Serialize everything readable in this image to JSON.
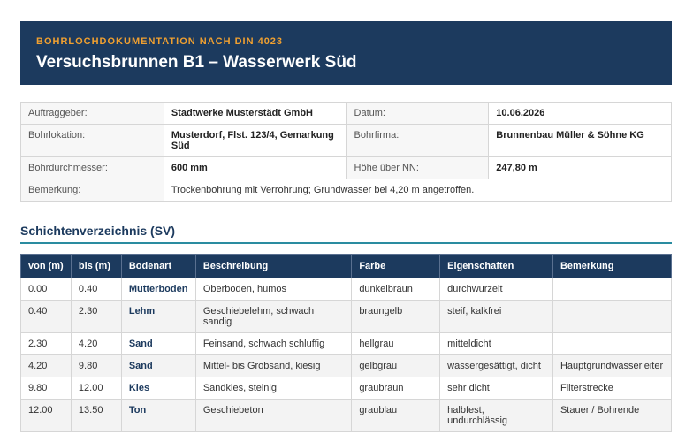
{
  "header": {
    "overline": "BOHRLOCHDOKUMENTATION NACH DIN 4023",
    "title": "Versuchsbrunnen B1 – Wasserwerk Süd"
  },
  "info": {
    "rows": [
      [
        "Auftraggeber:",
        "Stadtwerke Musterstädt GmbH",
        "Datum:",
        "10.06.2026"
      ],
      [
        "Bohrlokation:",
        "Musterdorf, Flst. 123/4, Gemarkung Süd",
        "Bohrfirma:",
        "Brunnenbau Müller & Söhne KG"
      ],
      [
        "Bohrdurchmesser:",
        "600 mm",
        "Höhe über NN:",
        "247,80 m"
      ],
      [
        "Bemerkung:",
        "Trockenbohrung mit Verrohrung; Grundwasser bei 4,20 m angetroffen."
      ]
    ]
  },
  "section": {
    "title": "Schichtenverzeichnis (SV)"
  },
  "table": {
    "columns": [
      "von (m)",
      "bis (m)",
      "Bodenart",
      "Beschreibung",
      "Farbe",
      "Eigenschaften",
      "Bemerkung"
    ],
    "rows": [
      [
        "0.00",
        "0.40",
        "Mutterboden",
        "Oberboden, humos",
        "dunkelbraun",
        "durchwurzelt",
        ""
      ],
      [
        "0.40",
        "2.30",
        "Lehm",
        "Geschiebelehm, schwach sandig",
        "braungelb",
        "steif, kalkfrei",
        ""
      ],
      [
        "2.30",
        "4.20",
        "Sand",
        "Feinsand, schwach schluffig",
        "hellgrau",
        "mitteldicht",
        ""
      ],
      [
        "4.20",
        "9.80",
        "Sand",
        "Mittel- bis Grobsand, kiesig",
        "gelbgrau",
        "wassergesättigt, dicht",
        "Hauptgrundwasserleiter"
      ],
      [
        "9.80",
        "12.00",
        "Kies",
        "Sandkies, steinig",
        "graubraun",
        "sehr dicht",
        "Filterstrecke"
      ],
      [
        "12.00",
        "13.50",
        "Ton",
        "Geschiebeton",
        "graublau",
        "halbfest, undurchlässig",
        "Stauer / Bohrende"
      ]
    ]
  }
}
